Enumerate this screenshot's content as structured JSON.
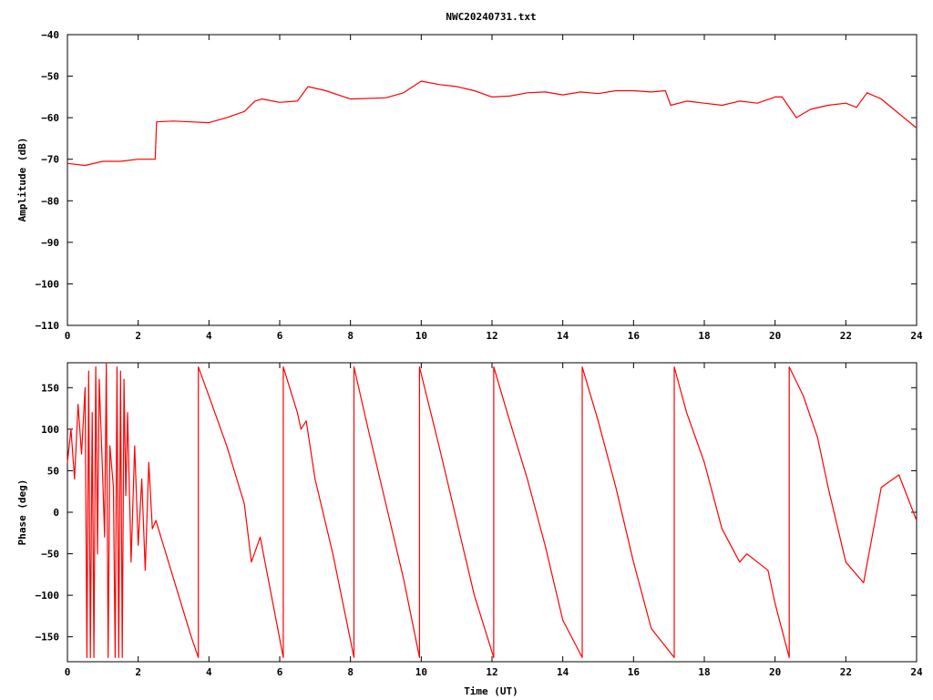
{
  "title": "NWC20240731.txt",
  "colors": {
    "series": "#ff0000",
    "axes": "#000000",
    "background": "#ffffff"
  },
  "chart_data": [
    {
      "type": "line",
      "xlabel": "",
      "ylabel": "Amplitude (dB)",
      "xlim": [
        0,
        24
      ],
      "ylim": [
        -110,
        -40
      ],
      "xticks": [
        0,
        2,
        4,
        6,
        8,
        10,
        12,
        14,
        16,
        18,
        20,
        22,
        24
      ],
      "yticks": [
        -110,
        -100,
        -90,
        -80,
        -70,
        -60,
        -50,
        -40
      ],
      "xtick_labels": [
        "0",
        "2",
        "4",
        "6",
        "8",
        "10",
        "12",
        "14",
        "16",
        "18",
        "20",
        "22",
        "24"
      ],
      "ytick_labels": [
        "−110",
        "−100",
        "−90",
        "−80",
        "−70",
        "−60",
        "−50",
        "−40"
      ],
      "grid": false,
      "series": [
        {
          "x": [
            0,
            0.5,
            1.0,
            1.5,
            2.0,
            2.48,
            2.52,
            3.0,
            3.5,
            4.0,
            4.5,
            5.0,
            5.3,
            5.5,
            6.0,
            6.5,
            6.8,
            7.3,
            8.0,
            9.0,
            9.5,
            10.0,
            10.5,
            11.0,
            11.5,
            12.0,
            12.5,
            13.0,
            13.5,
            14.0,
            14.5,
            15.0,
            15.5,
            16.0,
            16.5,
            16.9,
            17.05,
            17.5,
            18.0,
            18.5,
            19.0,
            19.5,
            20.0,
            20.2,
            20.6,
            21.0,
            21.5,
            22.0,
            22.3,
            22.6,
            23.0,
            23.5,
            24.0
          ],
          "y": [
            -71,
            -71.5,
            -70.5,
            -70.5,
            -70,
            -70,
            -61,
            -60.8,
            -61,
            -61.2,
            -60,
            -58.5,
            -56,
            -55.5,
            -56.3,
            -56,
            -52.5,
            -53.5,
            -55.5,
            -55.2,
            -54,
            -51.2,
            -52,
            -52.5,
            -53.5,
            -55,
            -54.8,
            -54,
            -53.8,
            -54.5,
            -53.8,
            -54.2,
            -53.5,
            -53.5,
            -53.8,
            -53.5,
            -57,
            -56,
            -56.5,
            -57,
            -56,
            -56.5,
            -55,
            -55,
            -60,
            -58,
            -57,
            -56.5,
            -57.5,
            -54,
            -55.5,
            -59,
            -62.5
          ]
        }
      ]
    },
    {
      "type": "line",
      "xlabel": "Time (UT)",
      "ylabel": "Phase (deg)",
      "xlim": [
        0,
        24
      ],
      "ylim": [
        -180,
        180
      ],
      "xticks": [
        0,
        2,
        4,
        6,
        8,
        10,
        12,
        14,
        16,
        18,
        20,
        22,
        24
      ],
      "yticks": [
        -150,
        -100,
        -50,
        0,
        50,
        100,
        150
      ],
      "xtick_labels": [
        "0",
        "2",
        "4",
        "6",
        "8",
        "10",
        "12",
        "14",
        "16",
        "18",
        "20",
        "22",
        "24"
      ],
      "ytick_labels": [
        "−150",
        "−100",
        "−50",
        "0",
        "50",
        "100",
        "150"
      ],
      "grid": false,
      "series": [
        {
          "x": [
            0,
            0.1,
            0.2,
            0.3,
            0.4,
            0.5,
            0.55,
            0.6,
            0.65,
            0.7,
            0.75,
            0.8,
            0.85,
            0.9,
            1.0,
            1.05,
            1.1,
            1.15,
            1.2,
            1.3,
            1.35,
            1.4,
            1.45,
            1.5,
            1.55,
            1.6,
            1.65,
            1.7,
            1.8,
            1.9,
            2.0,
            2.1,
            2.2,
            2.3,
            2.4,
            2.5,
            3.0,
            3.5,
            3.7,
            3.7,
            4.0,
            4.5,
            5.0,
            5.2,
            5.45,
            6.1,
            6.1,
            6.5,
            6.6,
            6.75,
            7.0,
            7.5,
            8.1,
            8.1,
            8.5,
            9.0,
            9.5,
            9.95,
            9.95,
            10.5,
            11.0,
            11.5,
            12.05,
            12.05,
            12.5,
            13.0,
            13.5,
            14.0,
            14.55,
            14.55,
            15.0,
            15.5,
            16.0,
            16.5,
            17.15,
            17.15,
            17.5,
            18.0,
            18.5,
            19.0,
            19.2,
            19.5,
            19.8,
            20.0,
            20.4,
            20.4,
            20.8,
            21.2,
            21.5,
            22.0,
            22.5,
            23.0,
            23.5,
            24.0
          ],
          "y": [
            60,
            100,
            40,
            130,
            70,
            150,
            -175,
            170,
            -175,
            120,
            -175,
            175,
            -50,
            160,
            40,
            -30,
            180,
            -175,
            80,
            30,
            -175,
            175,
            -175,
            170,
            -175,
            160,
            20,
            120,
            -60,
            80,
            -40,
            40,
            -70,
            60,
            -20,
            -10,
            -80,
            -150,
            -175,
            175,
            140,
            80,
            10,
            -60,
            -30,
            -175,
            175,
            120,
            100,
            110,
            40,
            -50,
            -175,
            175,
            100,
            10,
            -80,
            -175,
            175,
            80,
            -10,
            -100,
            -175,
            175,
            110,
            40,
            -40,
            -130,
            -175,
            175,
            110,
            30,
            -60,
            -140,
            -175,
            175,
            120,
            60,
            -20,
            -60,
            -50,
            -60,
            -70,
            -110,
            -175,
            175,
            140,
            90,
            30,
            -60,
            -85,
            30,
            45,
            -10
          ]
        }
      ]
    }
  ]
}
